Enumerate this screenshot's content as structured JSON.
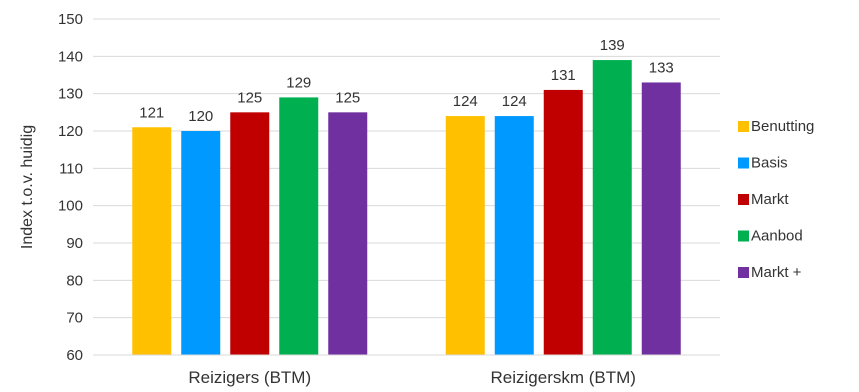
{
  "chart_data": {
    "type": "bar",
    "title": "",
    "xlabel": "",
    "ylabel": "Index t.o.v. huidig",
    "ylim": [
      60,
      150
    ],
    "yticks": [
      60,
      70,
      80,
      90,
      100,
      110,
      120,
      130,
      140,
      150
    ],
    "grid": true,
    "legend_position": "right",
    "categories": [
      "Reizigers (BTM)",
      "Reizigerskm (BTM)"
    ],
    "series": [
      {
        "name": "Benutting",
        "color": "#FFC000",
        "values": [
          121,
          124
        ]
      },
      {
        "name": "Basis",
        "color": "#0099FF",
        "values": [
          120,
          124
        ]
      },
      {
        "name": "Markt",
        "color": "#C00000",
        "values": [
          125,
          131
        ]
      },
      {
        "name": "Aanbod",
        "color": "#00B050",
        "values": [
          129,
          139
        ]
      },
      {
        "name": "Markt +",
        "color": "#7030A0",
        "values": [
          125,
          133
        ]
      }
    ]
  }
}
